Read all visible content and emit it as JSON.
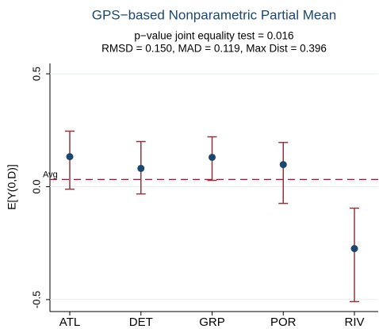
{
  "chart_data": {
    "type": "errorbar",
    "title": "GPS−based Nonparametric Partial Mean",
    "subtitle": [
      "p−value joint equality test = 0.016",
      "RMSD = 0.150, MAD = 0.119, Max Dist = 0.396"
    ],
    "y_label": "E[Y(0,D)]",
    "categories": [
      "ATL",
      "DET",
      "GRP",
      "POR",
      "RIV"
    ],
    "series": [
      {
        "point_color": "#1a476f",
        "bar_color": "#90353b",
        "values": [
          0.133,
          0.081,
          0.13,
          0.098,
          -0.274
        ],
        "lower": [
          -0.011,
          -0.032,
          0.028,
          -0.074,
          -0.509
        ],
        "upper": [
          0.246,
          0.2,
          0.221,
          0.196,
          -0.095
        ]
      }
    ],
    "reference_line": {
      "label": "Avg",
      "value": 0.032,
      "color": "#c10534"
    },
    "ylim": [
      -0.553,
      0.546
    ],
    "yticks": [
      {
        "value": 0.5,
        "label": "0.5"
      },
      {
        "value": 0,
        "label": "0.0"
      },
      -0.5
    ],
    "grid": true
  }
}
